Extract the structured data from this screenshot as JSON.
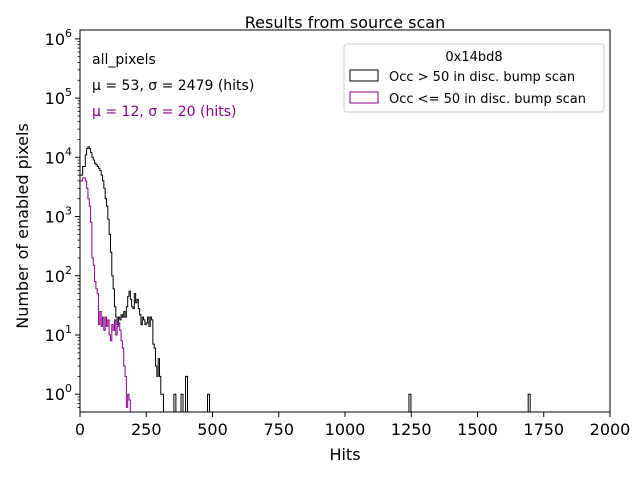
{
  "chart_data": {
    "type": "histogram",
    "title": "Results from source scan",
    "xlabel": "Hits",
    "ylabel": "Number of enabled pixels",
    "xlim": [
      0,
      2000
    ],
    "ylog_range": [
      -0.3,
      6.15
    ],
    "xticks": [
      {
        "value": 0,
        "label": "0"
      },
      {
        "value": 250,
        "label": "250"
      },
      {
        "value": 500,
        "label": "500"
      },
      {
        "value": 750,
        "label": "750"
      },
      {
        "value": 1000,
        "label": "1000"
      },
      {
        "value": 1250,
        "label": "1250"
      },
      {
        "value": 1500,
        "label": "1500"
      },
      {
        "value": 1750,
        "label": "1750"
      },
      {
        "value": 2000,
        "label": "2000"
      }
    ],
    "yticks": [
      {
        "exp": 0,
        "base": "10",
        "sup": "0"
      },
      {
        "exp": 1,
        "base": "10",
        "sup": "1"
      },
      {
        "exp": 2,
        "base": "10",
        "sup": "2"
      },
      {
        "exp": 3,
        "base": "10",
        "sup": "3"
      },
      {
        "exp": 4,
        "base": "10",
        "sup": "4"
      },
      {
        "exp": 5,
        "base": "10",
        "sup": "5"
      },
      {
        "exp": 6,
        "base": "10",
        "sup": "6"
      }
    ],
    "annotations": {
      "label": "all_pixels",
      "stats_black": "μ = 53, σ = 2479 (hits)",
      "stats_purple": "μ = 12, σ = 20 (hits)"
    },
    "legend": {
      "title": "0x14bd8",
      "placement": "top-right",
      "entries": [
        {
          "label": "Occ > 50 in disc. bump scan",
          "color": "#000000"
        },
        {
          "label": "Occ <= 50 in disc. bump scan",
          "color": "#8b008b"
        }
      ]
    },
    "series": [
      {
        "name": "Occ > 50 in disc. bump scan",
        "color": "#000000",
        "points": [
          [
            0,
            5000
          ],
          [
            10,
            7000
          ],
          [
            20,
            11000
          ],
          [
            25,
            14000
          ],
          [
            30,
            15000
          ],
          [
            35,
            14000
          ],
          [
            40,
            12000
          ],
          [
            45,
            10000
          ],
          [
            50,
            9000
          ],
          [
            55,
            8000
          ],
          [
            60,
            7500
          ],
          [
            65,
            7000
          ],
          [
            70,
            6500
          ],
          [
            75,
            6000
          ],
          [
            80,
            5000
          ],
          [
            85,
            4000
          ],
          [
            90,
            3000
          ],
          [
            95,
            2000
          ],
          [
            100,
            1500
          ],
          [
            105,
            900
          ],
          [
            110,
            500
          ],
          [
            115,
            250
          ],
          [
            120,
            100
          ],
          [
            125,
            60
          ],
          [
            130,
            30
          ],
          [
            135,
            20
          ],
          [
            140,
            15
          ],
          [
            145,
            20
          ],
          [
            150,
            18
          ],
          [
            155,
            22
          ],
          [
            160,
            20
          ],
          [
            165,
            25
          ],
          [
            170,
            20
          ],
          [
            175,
            30
          ],
          [
            180,
            45
          ],
          [
            185,
            55
          ],
          [
            190,
            40
          ],
          [
            195,
            30
          ],
          [
            200,
            28
          ],
          [
            205,
            50
          ],
          [
            210,
            35
          ],
          [
            215,
            40
          ],
          [
            220,
            28
          ],
          [
            225,
            22
          ],
          [
            230,
            15
          ],
          [
            235,
            20
          ],
          [
            240,
            18
          ],
          [
            245,
            15
          ],
          [
            250,
            16
          ],
          [
            255,
            20
          ],
          [
            260,
            14
          ],
          [
            265,
            20
          ],
          [
            270,
            18
          ],
          [
            275,
            7
          ],
          [
            280,
            6
          ],
          [
            285,
            3
          ],
          [
            290,
            2
          ],
          [
            295,
            4
          ],
          [
            300,
            2
          ],
          [
            305,
            1
          ],
          [
            310,
            1
          ],
          [
            315,
            0
          ]
        ],
        "spikes": [
          {
            "x": 358,
            "y": 1
          },
          {
            "x": 385,
            "y": 1
          },
          {
            "x": 402,
            "y": 2
          },
          {
            "x": 485,
            "y": 1
          },
          {
            "x": 1245,
            "y": 1
          },
          {
            "x": 1695,
            "y": 1
          }
        ]
      },
      {
        "name": "Occ <= 50 in disc. bump scan",
        "color": "#8b008b",
        "points": [
          [
            0,
            4000
          ],
          [
            10,
            4500
          ],
          [
            20,
            4000
          ],
          [
            25,
            3000
          ],
          [
            30,
            2000
          ],
          [
            35,
            1500
          ],
          [
            40,
            800
          ],
          [
            45,
            200
          ],
          [
            50,
            150
          ],
          [
            55,
            80
          ],
          [
            60,
            60
          ],
          [
            65,
            50
          ],
          [
            70,
            15
          ],
          [
            75,
            25
          ],
          [
            80,
            14
          ],
          [
            85,
            20
          ],
          [
            90,
            12
          ],
          [
            95,
            20
          ],
          [
            100,
            14
          ],
          [
            105,
            18
          ],
          [
            110,
            10
          ],
          [
            115,
            8
          ],
          [
            120,
            15
          ],
          [
            125,
            12
          ],
          [
            130,
            18
          ],
          [
            135,
            10
          ],
          [
            140,
            14
          ],
          [
            145,
            16
          ],
          [
            150,
            12
          ],
          [
            155,
            8
          ],
          [
            160,
            6
          ],
          [
            165,
            3
          ],
          [
            170,
            2
          ],
          [
            175,
            0.6
          ],
          [
            180,
            1
          ],
          [
            185,
            0.8
          ],
          [
            190,
            0.5
          ],
          [
            195,
            0.4
          ],
          [
            200,
            0
          ]
        ],
        "spikes": []
      }
    ]
  }
}
